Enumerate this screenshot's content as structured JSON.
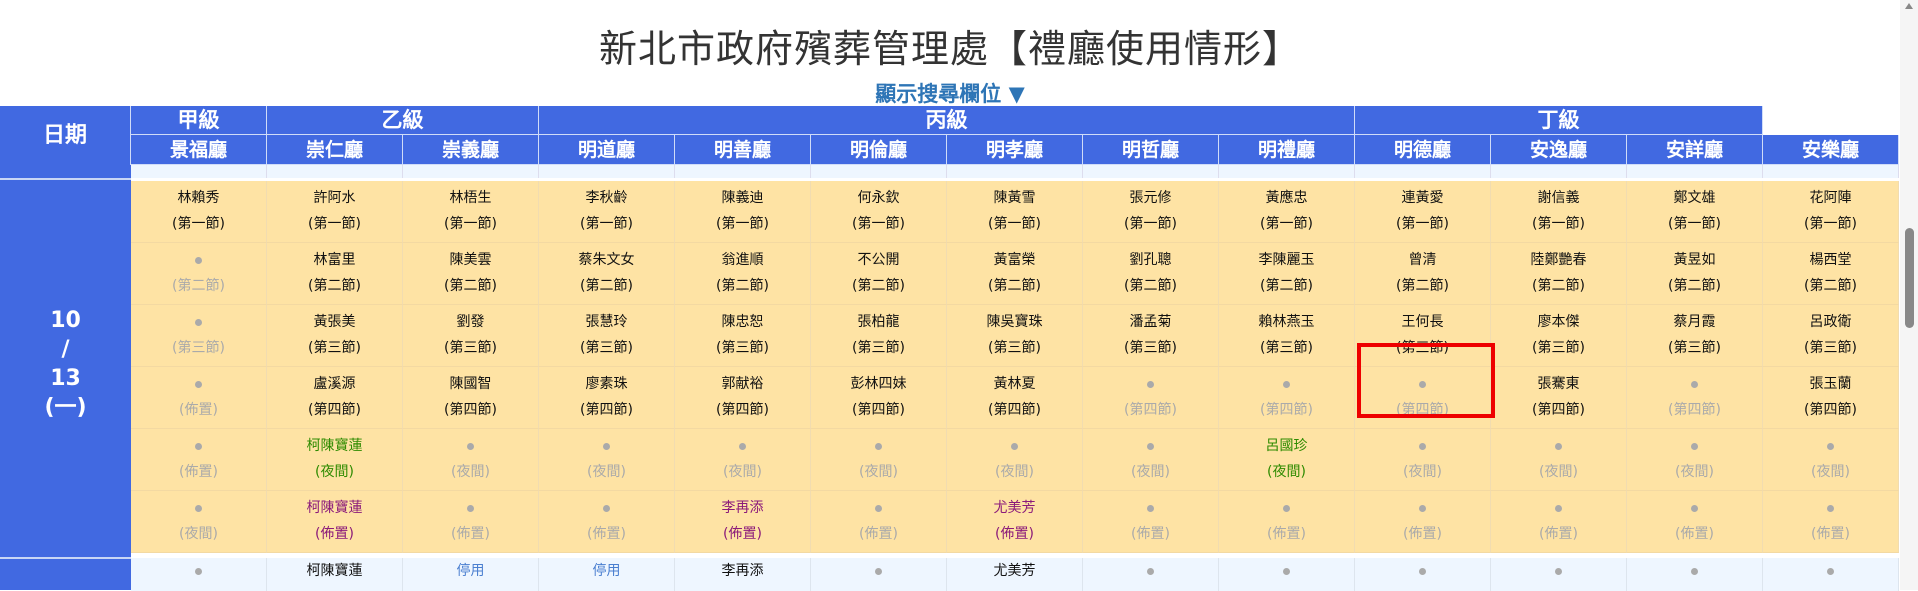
{
  "title": "新北市政府殯葬管理處【禮廳使用情形】",
  "search_toggle": "顯示搜尋欄位 ▼",
  "date_header": "日期",
  "date": {
    "month": "10",
    "sep": "/",
    "day": "13",
    "weekday": "(一)"
  },
  "grades": [
    {
      "label": "甲級",
      "span": 1
    },
    {
      "label": "乙級",
      "span": 2
    },
    {
      "label": "丙級",
      "span": 6
    },
    {
      "label": "丁級",
      "span": 3
    }
  ],
  "halls": [
    "景福廳",
    "崇仁廳",
    "崇義廳",
    "明道廳",
    "明善廳",
    "明倫廳",
    "明孝廳",
    "明哲廳",
    "明禮廳",
    "明德廳",
    "安逸廳",
    "安詳廳",
    "安樂廳"
  ],
  "colors": {
    "header": "#4169e1",
    "cell": "#fee3a4",
    "next_row": "#eef6ff",
    "night": "#2e8b00",
    "setup": "#8b1a7a",
    "highlight": "#e00000"
  },
  "highlighted_cell": {
    "hall": "明德廳",
    "name": "曾清",
    "slot": "(第二節)"
  },
  "rows": [
    [
      {
        "n": "林賴秀",
        "s": "(第一節)",
        "t": "normal"
      },
      {
        "n": "許阿水",
        "s": "(第一節)",
        "t": "normal"
      },
      {
        "n": "林梧生",
        "s": "(第一節)",
        "t": "normal"
      },
      {
        "n": "李秋齡",
        "s": "(第一節)",
        "t": "normal"
      },
      {
        "n": "陳義迪",
        "s": "(第一節)",
        "t": "normal"
      },
      {
        "n": "何永欽",
        "s": "(第一節)",
        "t": "normal"
      },
      {
        "n": "陳黃雪",
        "s": "(第一節)",
        "t": "normal"
      },
      {
        "n": "張元修",
        "s": "(第一節)",
        "t": "normal"
      },
      {
        "n": "黃應忠",
        "s": "(第一節)",
        "t": "normal"
      },
      {
        "n": "連黃愛",
        "s": "(第一節)",
        "t": "normal"
      },
      {
        "n": "謝信義",
        "s": "(第一節)",
        "t": "normal"
      },
      {
        "n": "鄭文雄",
        "s": "(第一節)",
        "t": "normal"
      },
      {
        "n": "花阿陣",
        "s": "(第一節)",
        "t": "normal"
      }
    ],
    [
      {
        "n": "",
        "s": "(第二節)",
        "t": "empty"
      },
      {
        "n": "林富里",
        "s": "(第二節)",
        "t": "normal"
      },
      {
        "n": "陳美雲",
        "s": "(第二節)",
        "t": "normal"
      },
      {
        "n": "蔡朱文女",
        "s": "(第二節)",
        "t": "normal"
      },
      {
        "n": "翁進順",
        "s": "(第二節)",
        "t": "normal"
      },
      {
        "n": "不公開",
        "s": "(第二節)",
        "t": "normal"
      },
      {
        "n": "黃富榮",
        "s": "(第二節)",
        "t": "normal"
      },
      {
        "n": "劉孔聰",
        "s": "(第二節)",
        "t": "normal"
      },
      {
        "n": "李陳麗玉",
        "s": "(第二節)",
        "t": "normal"
      },
      {
        "n": "曾清",
        "s": "(第二節)",
        "t": "normal"
      },
      {
        "n": "陸鄭艷春",
        "s": "(第二節)",
        "t": "normal"
      },
      {
        "n": "黃昱如",
        "s": "(第二節)",
        "t": "normal"
      },
      {
        "n": "楊西堂",
        "s": "(第二節)",
        "t": "normal"
      }
    ],
    [
      {
        "n": "",
        "s": "(第三節)",
        "t": "empty"
      },
      {
        "n": "黃張美",
        "s": "(第三節)",
        "t": "normal"
      },
      {
        "n": "劉發",
        "s": "(第三節)",
        "t": "normal"
      },
      {
        "n": "張慧玲",
        "s": "(第三節)",
        "t": "normal"
      },
      {
        "n": "陳忠恕",
        "s": "(第三節)",
        "t": "normal"
      },
      {
        "n": "張柏龍",
        "s": "(第三節)",
        "t": "normal"
      },
      {
        "n": "陳吳寶珠",
        "s": "(第三節)",
        "t": "normal"
      },
      {
        "n": "潘孟菊",
        "s": "(第三節)",
        "t": "normal"
      },
      {
        "n": "賴林燕玉",
        "s": "(第三節)",
        "t": "normal"
      },
      {
        "n": "王何長",
        "s": "(第三節)",
        "t": "normal"
      },
      {
        "n": "廖本傑",
        "s": "(第三節)",
        "t": "normal"
      },
      {
        "n": "蔡月霞",
        "s": "(第三節)",
        "t": "normal"
      },
      {
        "n": "呂政衛",
        "s": "(第三節)",
        "t": "normal"
      }
    ],
    [
      {
        "n": "",
        "s": "(佈置)",
        "t": "empty"
      },
      {
        "n": "盧溪源",
        "s": "(第四節)",
        "t": "normal"
      },
      {
        "n": "陳國智",
        "s": "(第四節)",
        "t": "normal"
      },
      {
        "n": "廖素珠",
        "s": "(第四節)",
        "t": "normal"
      },
      {
        "n": "郭献裕",
        "s": "(第四節)",
        "t": "normal"
      },
      {
        "n": "彭林四妹",
        "s": "(第四節)",
        "t": "normal"
      },
      {
        "n": "黃林夏",
        "s": "(第四節)",
        "t": "normal"
      },
      {
        "n": "",
        "s": "(第四節)",
        "t": "empty"
      },
      {
        "n": "",
        "s": "(第四節)",
        "t": "empty"
      },
      {
        "n": "",
        "s": "(第四節)",
        "t": "empty"
      },
      {
        "n": "張騫東",
        "s": "(第四節)",
        "t": "normal"
      },
      {
        "n": "",
        "s": "(第四節)",
        "t": "empty"
      },
      {
        "n": "張玉蘭",
        "s": "(第四節)",
        "t": "normal"
      }
    ],
    [
      {
        "n": "",
        "s": "(佈置)",
        "t": "empty"
      },
      {
        "n": "柯陳寶蓮",
        "s": "(夜間)",
        "t": "green"
      },
      {
        "n": "",
        "s": "(夜間)",
        "t": "empty"
      },
      {
        "n": "",
        "s": "(夜間)",
        "t": "empty"
      },
      {
        "n": "",
        "s": "(夜間)",
        "t": "empty"
      },
      {
        "n": "",
        "s": "(夜間)",
        "t": "empty"
      },
      {
        "n": "",
        "s": "(夜間)",
        "t": "empty"
      },
      {
        "n": "",
        "s": "(夜間)",
        "t": "empty"
      },
      {
        "n": "呂國珍",
        "s": "(夜間)",
        "t": "green"
      },
      {
        "n": "",
        "s": "(夜間)",
        "t": "empty"
      },
      {
        "n": "",
        "s": "(夜間)",
        "t": "empty"
      },
      {
        "n": "",
        "s": "(夜間)",
        "t": "empty"
      },
      {
        "n": "",
        "s": "(夜間)",
        "t": "empty"
      }
    ],
    [
      {
        "n": "",
        "s": "(夜間)",
        "t": "empty"
      },
      {
        "n": "柯陳寶蓮",
        "s": "(佈置)",
        "t": "purple"
      },
      {
        "n": "",
        "s": "(佈置)",
        "t": "empty"
      },
      {
        "n": "",
        "s": "(佈置)",
        "t": "empty"
      },
      {
        "n": "李再添",
        "s": "(佈置)",
        "t": "purple"
      },
      {
        "n": "",
        "s": "(佈置)",
        "t": "empty"
      },
      {
        "n": "尤美芳",
        "s": "(佈置)",
        "t": "purple"
      },
      {
        "n": "",
        "s": "(佈置)",
        "t": "empty"
      },
      {
        "n": "",
        "s": "(佈置)",
        "t": "empty"
      },
      {
        "n": "",
        "s": "(佈置)",
        "t": "empty"
      },
      {
        "n": "",
        "s": "(佈置)",
        "t": "empty"
      },
      {
        "n": "",
        "s": "(佈置)",
        "t": "empty"
      },
      {
        "n": "",
        "s": "(佈置)",
        "t": "empty"
      }
    ]
  ],
  "next_day_row": [
    {
      "n": "",
      "t": "empty"
    },
    {
      "n": "柯陳寶蓮",
      "t": "normal"
    },
    {
      "n": "停用",
      "t": "blue"
    },
    {
      "n": "停用",
      "t": "blue"
    },
    {
      "n": "李再添",
      "t": "normal"
    },
    {
      "n": "",
      "t": "empty"
    },
    {
      "n": "尤美芳",
      "t": "normal"
    },
    {
      "n": "",
      "t": "empty"
    },
    {
      "n": "",
      "t": "empty"
    },
    {
      "n": "",
      "t": "empty"
    },
    {
      "n": "",
      "t": "empty"
    },
    {
      "n": "",
      "t": "empty"
    },
    {
      "n": "",
      "t": "empty"
    }
  ]
}
